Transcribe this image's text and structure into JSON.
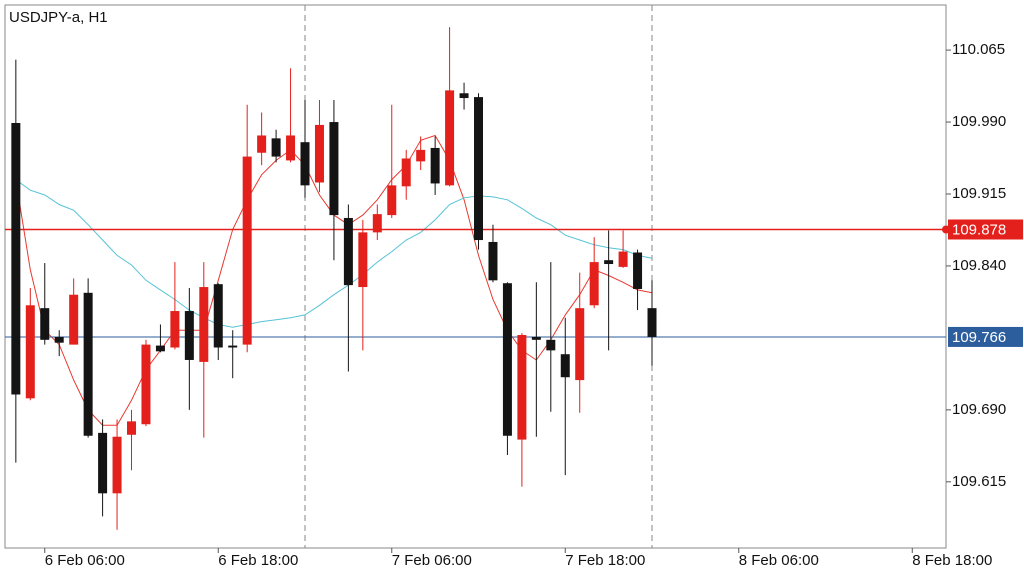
{
  "chart_data": {
    "type": "candlestick",
    "title": "USDJPY-a, H1",
    "x": [
      "6 Feb 04:00",
      "6 Feb 05:00",
      "6 Feb 06:00",
      "6 Feb 07:00",
      "6 Feb 08:00",
      "6 Feb 09:00",
      "6 Feb 10:00",
      "6 Feb 11:00",
      "6 Feb 12:00",
      "6 Feb 13:00",
      "6 Feb 14:00",
      "6 Feb 15:00",
      "6 Feb 16:00",
      "6 Feb 17:00",
      "6 Feb 18:00",
      "6 Feb 19:00",
      "6 Feb 20:00",
      "6 Feb 21:00",
      "6 Feb 22:00",
      "6 Feb 23:00",
      "7 Feb 00:00",
      "7 Feb 01:00",
      "7 Feb 02:00",
      "7 Feb 03:00",
      "7 Feb 04:00",
      "7 Feb 05:00",
      "7 Feb 06:00",
      "7 Feb 07:00",
      "7 Feb 08:00",
      "7 Feb 09:00",
      "7 Feb 10:00",
      "7 Feb 11:00",
      "7 Feb 12:00",
      "7 Feb 13:00",
      "7 Feb 14:00",
      "7 Feb 15:00",
      "7 Feb 16:00",
      "7 Feb 17:00",
      "7 Feb 18:00",
      "7 Feb 19:00",
      "7 Feb 20:00",
      "7 Feb 21:00",
      "7 Feb 22:00",
      "7 Feb 23:00",
      "8 Feb 00:00"
    ],
    "open": [
      109.989,
      109.702,
      109.796,
      109.766,
      109.758,
      109.812,
      109.666,
      109.603,
      109.664,
      109.675,
      109.757,
      109.755,
      109.793,
      109.74,
      109.821,
      109.757,
      109.758,
      109.958,
      109.973,
      109.95,
      109.969,
      109.927,
      109.99,
      109.89,
      109.818,
      109.875,
      109.893,
      109.923,
      109.949,
      109.963,
      109.924,
      110.02,
      110.016,
      109.865,
      109.822,
      109.659,
      109.766,
      109.763,
      109.748,
      109.721,
      109.799,
      109.846,
      109.839,
      109.854,
      109.796
    ],
    "high": [
      110.055,
      109.817,
      109.843,
      109.773,
      109.827,
      109.827,
      109.68,
      109.68,
      109.69,
      109.763,
      109.779,
      109.844,
      109.817,
      109.844,
      109.822,
      109.773,
      110.008,
      110.0,
      109.982,
      110.046,
      110.013,
      110.013,
      110.013,
      109.904,
      109.888,
      109.904,
      110.008,
      109.961,
      109.975,
      109.975,
      110.089,
      110.031,
      110.02,
      109.883,
      109.823,
      109.77,
      109.823,
      109.844,
      109.786,
      109.833,
      109.87,
      109.877,
      109.877,
      109.857,
      109.825
    ],
    "low": [
      109.635,
      109.7,
      109.758,
      109.746,
      109.758,
      109.661,
      109.579,
      109.565,
      109.627,
      109.673,
      109.75,
      109.753,
      109.69,
      109.661,
      109.742,
      109.723,
      109.75,
      109.945,
      109.948,
      109.948,
      109.911,
      109.917,
      109.846,
      109.73,
      109.752,
      109.867,
      109.89,
      109.909,
      109.94,
      109.914,
      109.923,
      110.003,
      109.857,
      109.823,
      109.643,
      109.61,
      109.662,
      109.688,
      109.622,
      109.687,
      109.796,
      109.752,
      109.838,
      109.794,
      109.736
    ],
    "close": [
      109.706,
      109.799,
      109.763,
      109.76,
      109.81,
      109.663,
      109.603,
      109.662,
      109.678,
      109.758,
      109.751,
      109.793,
      109.742,
      109.818,
      109.755,
      109.755,
      109.954,
      109.976,
      109.954,
      109.976,
      109.924,
      109.987,
      109.893,
      109.82,
      109.875,
      109.894,
      109.924,
      109.952,
      109.961,
      109.926,
      110.023,
      110.015,
      109.867,
      109.825,
      109.663,
      109.768,
      109.763,
      109.752,
      109.724,
      109.796,
      109.844,
      109.842,
      109.855,
      109.816,
      109.766
    ],
    "up_color": "#e3201b",
    "down_color": "#141414",
    "overlays": [
      {
        "color": "#e8392f",
        "values": [
          109.93,
          109.836,
          109.773,
          109.758,
          109.721,
          109.69,
          109.674,
          109.674,
          109.7,
          109.732,
          109.752,
          109.773,
          109.773,
          109.773,
          109.825,
          109.878,
          109.909,
          109.935,
          109.95,
          109.961,
          109.945,
          109.914,
          109.893,
          109.883,
          109.893,
          109.909,
          109.93,
          109.945,
          109.971,
          109.976,
          109.95,
          109.909,
          109.851,
          109.805,
          109.773,
          109.752,
          109.742,
          109.763,
          109.789,
          109.81,
          109.836,
          109.83,
          109.823,
          109.815,
          109.812
        ]
      },
      {
        "color": "#56c3d6",
        "values": [
          109.93,
          109.919,
          109.914,
          109.904,
          109.898,
          109.883,
          109.867,
          109.851,
          109.841,
          109.825,
          109.815,
          109.805,
          109.794,
          109.786,
          109.779,
          109.776,
          109.779,
          109.782,
          109.784,
          109.786,
          109.789,
          109.799,
          109.81,
          109.82,
          109.831,
          109.844,
          109.855,
          109.867,
          109.875,
          109.888,
          109.904,
          109.911,
          109.913,
          109.912,
          109.909,
          109.9,
          109.89,
          109.883,
          109.872,
          109.867,
          109.862,
          109.859,
          109.857,
          109.851,
          109.848
        ]
      }
    ],
    "hlines": [
      {
        "value": 109.878,
        "color": "#e3201b"
      },
      {
        "value": 109.766,
        "color": "#2c5e9e"
      }
    ],
    "separators": [
      "7 Feb 00:00",
      "8 Feb 00:00"
    ],
    "xlim": [
      "6 Feb 03:15",
      "8 Feb 20:20"
    ],
    "xticks": [
      "6 Feb 06:00",
      "6 Feb 18:00",
      "7 Feb 06:00",
      "7 Feb 18:00",
      "8 Feb 06:00",
      "8 Feb 18:00"
    ],
    "ylim": [
      109.546,
      110.112
    ],
    "yticks": [
      109.615,
      {
        "value": 109.69,
        "label": "109.690"
      },
      {
        "value": 109.84,
        "label": "109.840"
      },
      109.915,
      {
        "value": 109.99,
        "label": "109.990"
      },
      110.065
    ]
  }
}
